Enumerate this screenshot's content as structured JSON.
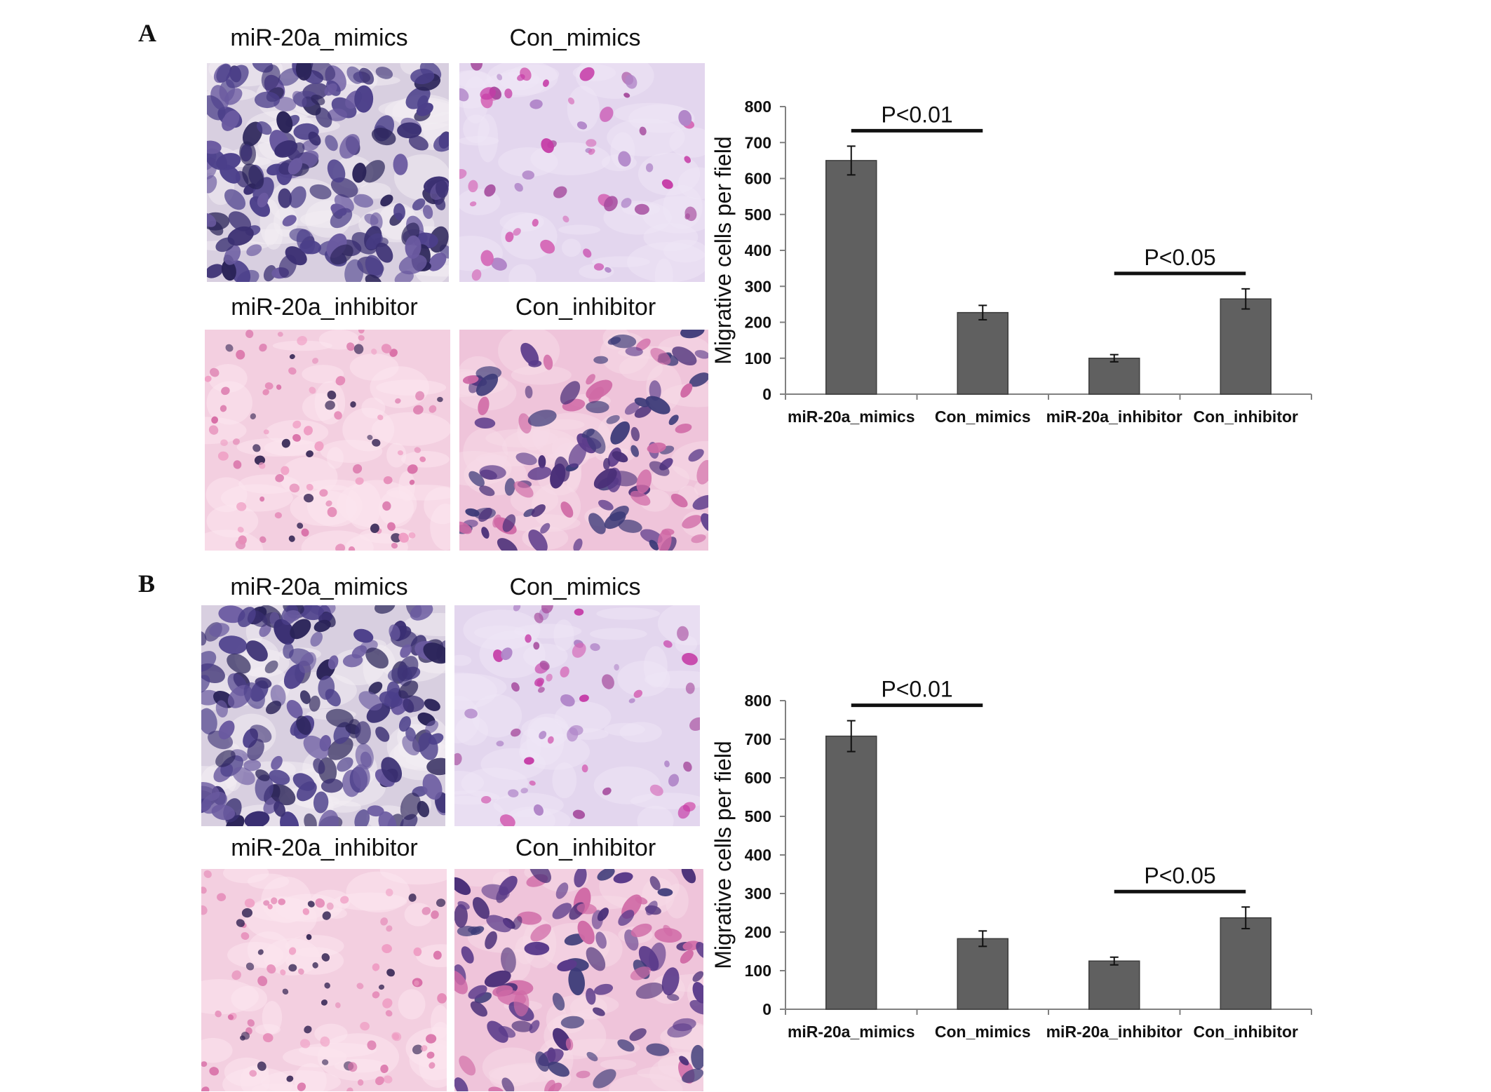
{
  "panels": [
    {
      "letter": "A",
      "images": [
        {
          "label": "miR-20a_mimics",
          "stain": "dense-blue"
        },
        {
          "label": "Con_mimics",
          "stain": "sparse-lilac"
        },
        {
          "label": "miR-20a_inhibitor",
          "stain": "sparse-pink"
        },
        {
          "label": "Con_inhibitor",
          "stain": "medium-pink"
        }
      ]
    },
    {
      "letter": "B",
      "images": [
        {
          "label": "miR-20a_mimics",
          "stain": "dense-blue"
        },
        {
          "label": "Con_mimics",
          "stain": "sparse-lilac"
        },
        {
          "label": "miR-20a_inhibitor",
          "stain": "sparse-pink"
        },
        {
          "label": "Con_inhibitor",
          "stain": "medium-pink"
        }
      ]
    }
  ],
  "colors": {
    "bar": "#606060",
    "axis": "#808080",
    "text": "#111111"
  },
  "chart_data": [
    {
      "type": "bar",
      "panel": "A",
      "categories": [
        "miR-20a_mimics",
        "Con_mimics",
        "miR-20a_inhibitor",
        "Con_inhibitor"
      ],
      "values": [
        650,
        227,
        100,
        265
      ],
      "errors": [
        40,
        20,
        10,
        28
      ],
      "ylabel": "Migrative cells per field",
      "ylim": [
        0,
        800
      ],
      "yticks": [
        0,
        100,
        200,
        300,
        400,
        500,
        600,
        700,
        800
      ],
      "grid": false,
      "significance": [
        {
          "label": "P<0.01",
          "from": 0,
          "to": 1
        },
        {
          "label": "P<0.05",
          "from": 2,
          "to": 3
        }
      ]
    },
    {
      "type": "bar",
      "panel": "B",
      "categories": [
        "miR-20a_mimics",
        "Con_mimics",
        "miR-20a_inhibitor",
        "Con_inhibitor"
      ],
      "values": [
        708,
        183,
        125,
        237
      ],
      "errors": [
        40,
        20,
        10,
        28
      ],
      "ylabel": "Migrative cells per field",
      "ylim": [
        0,
        800
      ],
      "yticks": [
        0,
        100,
        200,
        300,
        400,
        500,
        600,
        700,
        800
      ],
      "grid": false,
      "significance": [
        {
          "label": "P<0.01",
          "from": 0,
          "to": 1
        },
        {
          "label": "P<0.05",
          "from": 2,
          "to": 3
        }
      ]
    }
  ]
}
